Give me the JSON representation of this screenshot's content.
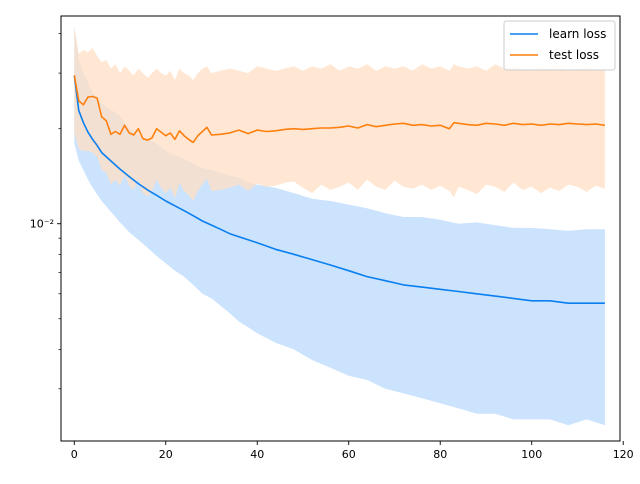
{
  "chart_data": {
    "type": "line",
    "title": "",
    "xlabel": "",
    "ylabel": "",
    "y_scale": "log",
    "xlim": [
      -2.9,
      119.3
    ],
    "ylim": [
      0.00205,
      0.0455
    ],
    "x_ticks": [
      0,
      20,
      40,
      60,
      80,
      100,
      120
    ],
    "y_major_ticks": [
      {
        "value": 0.01,
        "label": "10⁻²"
      }
    ],
    "y_minor_ticks": [
      0.003,
      0.004,
      0.005,
      0.006,
      0.007,
      0.008,
      0.009,
      0.02,
      0.03,
      0.04
    ],
    "grid": false,
    "legend": {
      "position": "top-right",
      "entries": [
        "learn loss",
        "test loss"
      ]
    },
    "series": [
      {
        "name": "learn loss",
        "color": "#0a7ff0",
        "band_color": "#cbe3fd",
        "x": [
          0,
          1,
          2,
          3,
          4,
          5,
          6,
          8,
          10,
          12,
          14,
          16,
          18,
          20,
          22,
          24,
          26,
          28,
          30,
          32,
          34,
          36,
          38,
          40,
          44,
          48,
          52,
          56,
          60,
          64,
          68,
          72,
          76,
          80,
          84,
          88,
          92,
          96,
          100,
          104,
          108,
          112,
          116
        ],
        "values": [
          0.0295,
          0.0228,
          0.0209,
          0.0195,
          0.0185,
          0.0177,
          0.0168,
          0.0158,
          0.0149,
          0.0141,
          0.0134,
          0.0128,
          0.0123,
          0.0118,
          0.0114,
          0.011,
          0.0106,
          0.0102,
          0.0099,
          0.0096,
          0.0093,
          0.0091,
          0.0089,
          0.0087,
          0.0083,
          0.008,
          0.0077,
          0.0074,
          0.0071,
          0.0068,
          0.0066,
          0.0064,
          0.0063,
          0.0062,
          0.0061,
          0.006,
          0.0059,
          0.0058,
          0.0057,
          0.0057,
          0.0056,
          0.0056,
          0.0056
        ],
        "upper": [
          0.042,
          0.033,
          0.03,
          0.028,
          0.026,
          0.025,
          0.024,
          0.023,
          0.022,
          0.02,
          0.019,
          0.0185,
          0.018,
          0.017,
          0.0165,
          0.016,
          0.0155,
          0.015,
          0.0148,
          0.0145,
          0.0142,
          0.014,
          0.0135,
          0.0133,
          0.013,
          0.0125,
          0.012,
          0.0118,
          0.0115,
          0.0112,
          0.0108,
          0.0105,
          0.0105,
          0.0103,
          0.01,
          0.0101,
          0.0099,
          0.0097,
          0.0097,
          0.0096,
          0.0095,
          0.0096,
          0.0096
        ],
        "lower": [
          0.018,
          0.0158,
          0.0148,
          0.0138,
          0.013,
          0.0124,
          0.0118,
          0.0109,
          0.0101,
          0.0094,
          0.0089,
          0.0084,
          0.0079,
          0.0075,
          0.0071,
          0.0068,
          0.0064,
          0.006,
          0.0058,
          0.0055,
          0.0052,
          0.0049,
          0.0047,
          0.0045,
          0.0042,
          0.004,
          0.0037,
          0.0035,
          0.0033,
          0.0032,
          0.003,
          0.0029,
          0.0028,
          0.0027,
          0.0026,
          0.0025,
          0.0025,
          0.0024,
          0.0024,
          0.0024,
          0.0023,
          0.0024,
          0.0023
        ]
      },
      {
        "name": "test loss",
        "color": "#ff7f0e",
        "band_color": "#ffdfc4",
        "x": [
          0,
          1,
          2,
          3,
          4,
          5,
          6,
          7,
          8,
          9,
          10,
          11,
          12,
          13,
          14,
          15,
          16,
          17,
          18,
          19,
          20,
          21,
          22,
          23,
          24,
          25,
          26,
          27,
          28,
          29,
          30,
          32,
          34,
          36,
          38,
          40,
          42,
          44,
          46,
          48,
          50,
          52,
          54,
          56,
          58,
          60,
          62,
          64,
          66,
          68,
          70,
          72,
          74,
          76,
          78,
          80,
          82,
          83,
          84,
          86,
          88,
          90,
          92,
          94,
          96,
          98,
          100,
          102,
          104,
          106,
          108,
          110,
          112,
          114,
          116
        ],
        "values": [
          0.0295,
          0.0245,
          0.0238,
          0.0252,
          0.0253,
          0.025,
          0.0218,
          0.0212,
          0.0192,
          0.0196,
          0.0192,
          0.0205,
          0.0194,
          0.0191,
          0.02,
          0.0186,
          0.0184,
          0.0187,
          0.02,
          0.0195,
          0.019,
          0.0194,
          0.0185,
          0.0197,
          0.019,
          0.0185,
          0.0181,
          0.019,
          0.0196,
          0.0202,
          0.0191,
          0.0192,
          0.0194,
          0.0198,
          0.0193,
          0.0198,
          0.0196,
          0.0197,
          0.0199,
          0.02,
          0.0199,
          0.02,
          0.0201,
          0.0201,
          0.0202,
          0.0204,
          0.0201,
          0.0206,
          0.0203,
          0.0205,
          0.0207,
          0.0208,
          0.0205,
          0.0206,
          0.0204,
          0.0205,
          0.02,
          0.0209,
          0.0208,
          0.0206,
          0.0205,
          0.0208,
          0.0207,
          0.0205,
          0.0208,
          0.0206,
          0.0207,
          0.0205,
          0.0207,
          0.0206,
          0.0208,
          0.0207,
          0.0206,
          0.0207,
          0.0205
        ],
        "upper": [
          0.042,
          0.0345,
          0.0355,
          0.035,
          0.036,
          0.034,
          0.0325,
          0.033,
          0.031,
          0.032,
          0.03,
          0.0315,
          0.0305,
          0.0295,
          0.031,
          0.03,
          0.029,
          0.03,
          0.031,
          0.03,
          0.0295,
          0.0305,
          0.0285,
          0.031,
          0.03,
          0.0295,
          0.0285,
          0.03,
          0.031,
          0.0315,
          0.03,
          0.0305,
          0.031,
          0.0305,
          0.03,
          0.0315,
          0.031,
          0.0305,
          0.031,
          0.0315,
          0.0305,
          0.0315,
          0.031,
          0.032,
          0.0305,
          0.0315,
          0.031,
          0.032,
          0.0305,
          0.0315,
          0.031,
          0.0315,
          0.0305,
          0.032,
          0.031,
          0.0315,
          0.0305,
          0.032,
          0.0315,
          0.031,
          0.0315,
          0.0305,
          0.032,
          0.031,
          0.0315,
          0.031,
          0.0305,
          0.0315,
          0.031,
          0.032,
          0.0305,
          0.031,
          0.0315,
          0.0305,
          0.031
        ],
        "lower": [
          0.0195,
          0.0172,
          0.017,
          0.017,
          0.0168,
          0.0163,
          0.0148,
          0.0145,
          0.0133,
          0.0138,
          0.0132,
          0.0143,
          0.0132,
          0.0128,
          0.0138,
          0.0125,
          0.0122,
          0.0127,
          0.0138,
          0.013,
          0.0125,
          0.013,
          0.012,
          0.0135,
          0.0127,
          0.0123,
          0.0118,
          0.0127,
          0.0133,
          0.0139,
          0.0127,
          0.0128,
          0.013,
          0.0133,
          0.0127,
          0.0134,
          0.0131,
          0.0132,
          0.0135,
          0.0136,
          0.013,
          0.0125,
          0.0133,
          0.0128,
          0.0131,
          0.0135,
          0.0128,
          0.0138,
          0.0131,
          0.0128,
          0.0137,
          0.0131,
          0.0129,
          0.0133,
          0.0128,
          0.0132,
          0.0127,
          0.0121,
          0.0131,
          0.0128,
          0.0124,
          0.0133,
          0.0131,
          0.0126,
          0.0135,
          0.0128,
          0.0131,
          0.0125,
          0.013,
          0.0127,
          0.0133,
          0.0131,
          0.0126,
          0.0132,
          0.0129
        ]
      }
    ]
  }
}
